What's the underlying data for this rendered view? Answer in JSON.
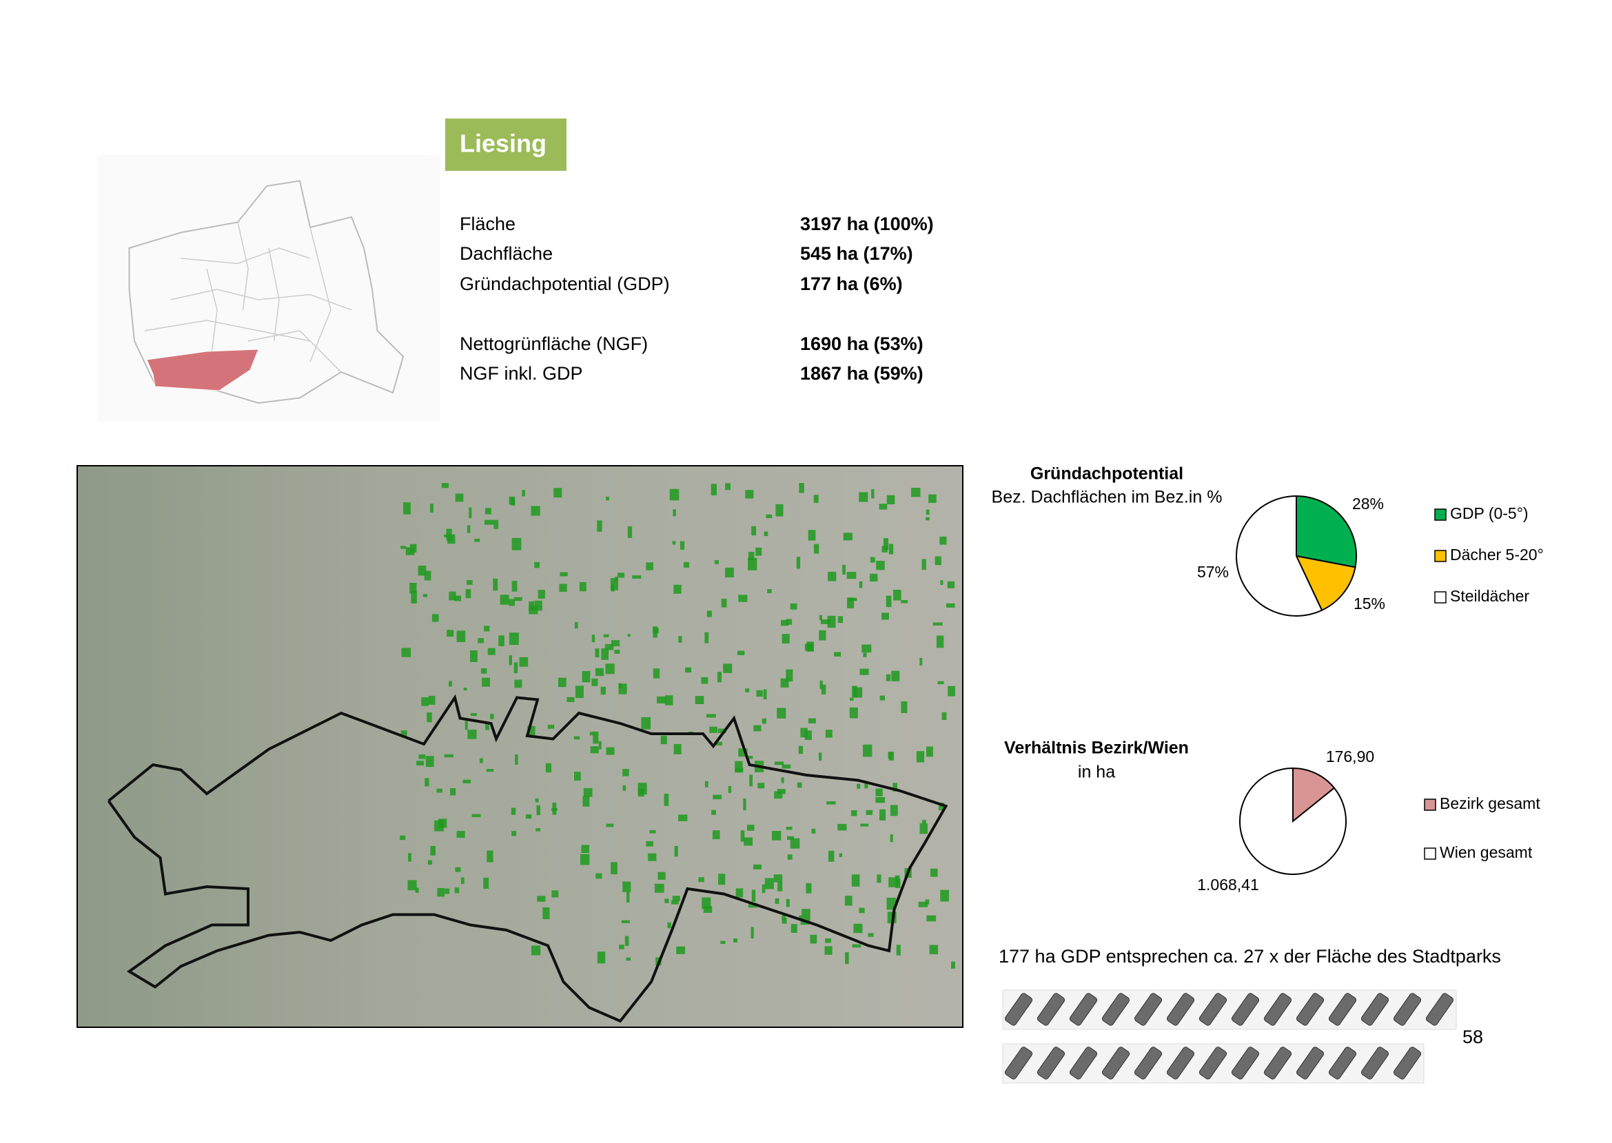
{
  "header": {
    "title": "Liesing"
  },
  "stats": {
    "rows": [
      {
        "label": "Fläche",
        "value": "3197 ha (100%)"
      },
      {
        "label": "Dachfläche",
        "value": "545 ha (17%)"
      },
      {
        "label": "Gründachpotential (GDP)",
        "value": "177 ha (6%)"
      },
      {
        "label": "Nettogrünfläche (NGF)",
        "value": "1690 ha (53%)"
      },
      {
        "label": "NGF inkl. GDP",
        "value": "1867 ha (59%)"
      }
    ]
  },
  "chart_data": [
    {
      "type": "pie",
      "title": "Gründachpotential",
      "subtitle": "Bez. Dachflächen im Bez.in %",
      "categories": [
        "GDP (0-5°)",
        "Dächer 5-20°",
        "Steildächer"
      ],
      "values": [
        28,
        15,
        57
      ],
      "value_labels": [
        "28%",
        "15%",
        "57%"
      ],
      "colors": [
        "#00b050",
        "#ffc000",
        "#ffffff"
      ]
    },
    {
      "type": "pie",
      "title": "Verhältnis Bezirk/Wien",
      "subtitle": "in ha",
      "categories": [
        "Bezirk gesamt",
        "Wien gesamt"
      ],
      "values": [
        176.9,
        1068.41
      ],
      "value_labels": [
        "176,90",
        "1.068,41"
      ],
      "colors": [
        "#d99594",
        "#ffffff"
      ]
    }
  ],
  "note": "177 ha GDP entsprechen  ca. 27 x der Fläche des Stadtparks",
  "page_number": "58"
}
